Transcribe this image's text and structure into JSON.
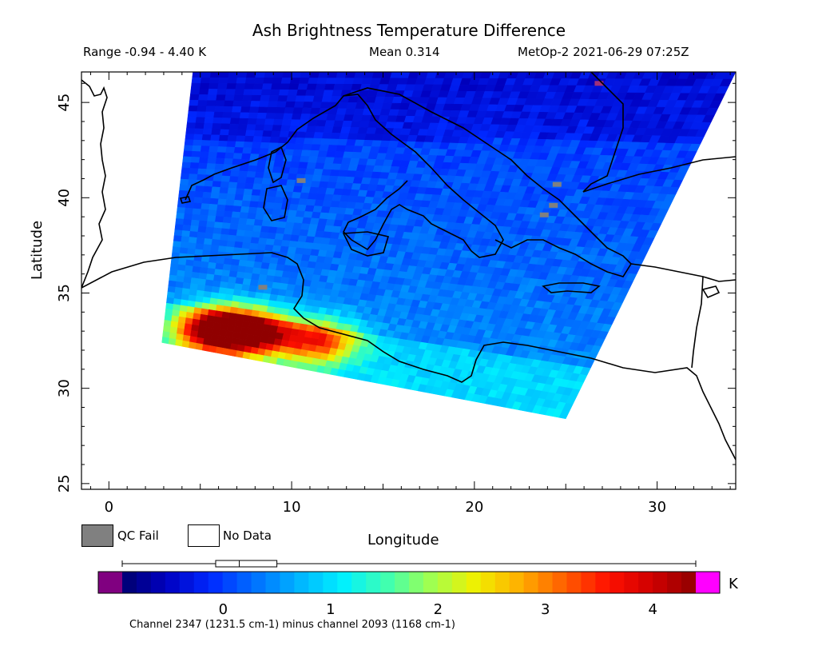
{
  "header": {
    "title": "Ash Brightness Temperature Difference",
    "range_text": "Range -0.94 - 4.40 K",
    "mean_text": "Mean 0.314",
    "satellite_text": "MetOp-2 2021-06-29 07:25Z"
  },
  "chart_data": {
    "type": "heatmap",
    "title": "Ash Brightness Temperature Difference",
    "xlabel": "Longitude",
    "ylabel": "Latitude",
    "xlim": [
      -1.5,
      34.3
    ],
    "ylim": [
      24.7,
      46.6
    ],
    "x_ticks": [
      0,
      10,
      20,
      30
    ],
    "y_ticks": [
      25,
      30,
      35,
      40,
      45
    ],
    "value_range": [
      -0.94,
      4.4
    ],
    "mean": 0.314,
    "unit": "K",
    "colorbar": {
      "ticks": [
        0,
        1,
        2,
        3,
        4
      ],
      "min": -0.94,
      "max": 4.4,
      "box": {
        "whisker_min": -0.94,
        "q1": -0.07,
        "median": 0.15,
        "q3": 0.5,
        "whisker_max": 4.4
      },
      "colors": [
        "#00006e",
        "#0000c0",
        "#0028ff",
        "#0070ff",
        "#00b4ff",
        "#00f0ff",
        "#40ffb0",
        "#a0ff50",
        "#f0f000",
        "#ffb000",
        "#ff6000",
        "#ff1000",
        "#d00000",
        "#900000"
      ],
      "under_color": "#800080",
      "over_color": "#ff00ff"
    },
    "swath": {
      "corners_lonlat": [
        [
          4.6,
          46.6
        ],
        [
          34.3,
          46.6
        ],
        [
          25.0,
          28.4
        ],
        [
          2.9,
          32.4
        ]
      ]
    },
    "hotspots": [
      {
        "lon": 8.0,
        "lat": 32.9,
        "value": 3.6
      },
      {
        "lon": 5.9,
        "lat": 33.1,
        "value": 4.4
      },
      {
        "lon": 11.5,
        "lat": 32.5,
        "value": 3.0
      }
    ],
    "qc_fail_points": [
      [
        26.8,
        46.0
      ],
      [
        24.5,
        40.7
      ],
      [
        24.3,
        39.6
      ],
      [
        23.8,
        39.1
      ],
      [
        10.5,
        40.9
      ],
      [
        8.4,
        35.3
      ]
    ]
  },
  "legend": {
    "qc_fail_label": "QC Fail",
    "no_data_label": "No Data",
    "qc_fail_color": "#808080",
    "no_data_color": "#ffffff"
  },
  "colorbar_caption": "Channel 2347 (1231.5 cm-1) minus channel 2093 (1168 cm-1)",
  "colorbar_unit": "K"
}
